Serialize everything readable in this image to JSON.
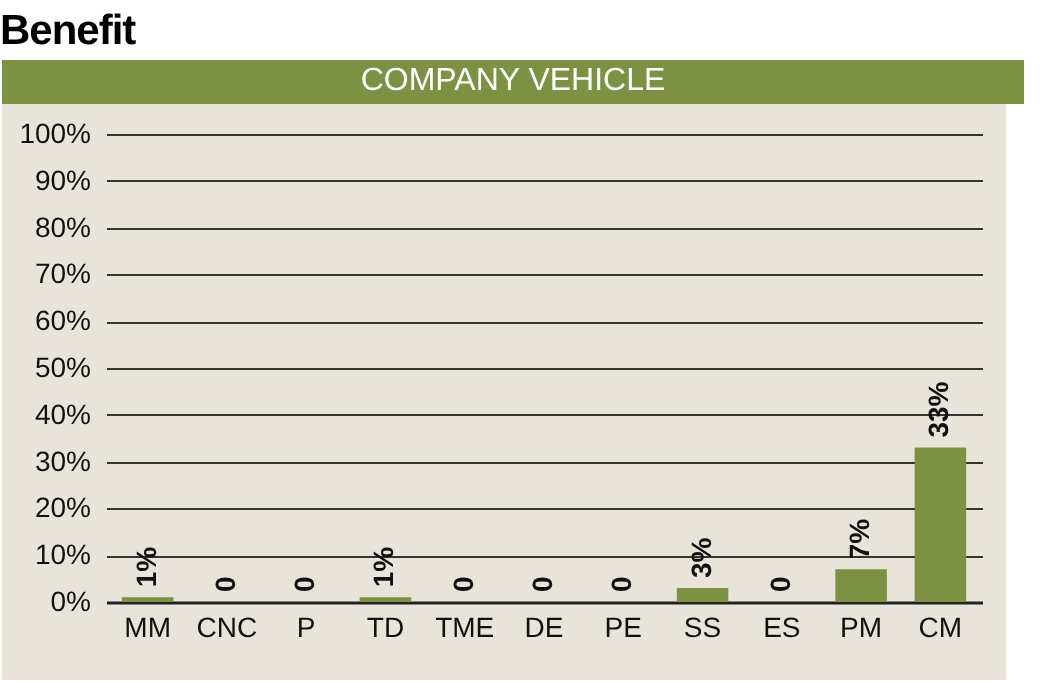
{
  "chart_data": {
    "type": "bar",
    "title": "Benefit",
    "subtitle": "COMPANY VEHICLE",
    "categories": [
      "MM",
      "CNC",
      "P",
      "TD",
      "TME",
      "DE",
      "PE",
      "SS",
      "ES",
      "PM",
      "CM"
    ],
    "values": [
      1,
      0,
      0,
      1,
      0,
      0,
      0,
      3,
      0,
      7,
      33
    ],
    "value_labels": [
      "1%",
      "0",
      "0",
      "1%",
      "0",
      "0",
      "0",
      "3%",
      "0",
      "7%",
      "33%"
    ],
    "color": "#7d9142",
    "ylim": [
      0,
      100
    ],
    "yticks": [
      {
        "value": 0,
        "label": "0%"
      },
      {
        "value": 10,
        "label": "10%"
      },
      {
        "value": 20,
        "label": "20%"
      },
      {
        "value": 30,
        "label": "30%"
      },
      {
        "value": 40,
        "label": "40%"
      },
      {
        "value": 50,
        "label": "50%"
      },
      {
        "value": 60,
        "label": "60%"
      },
      {
        "value": 70,
        "label": "70%"
      },
      {
        "value": 80,
        "label": "80%"
      },
      {
        "value": 90,
        "label": "90%"
      },
      {
        "value": 100,
        "label": "100%"
      }
    ],
    "grid": "y"
  }
}
